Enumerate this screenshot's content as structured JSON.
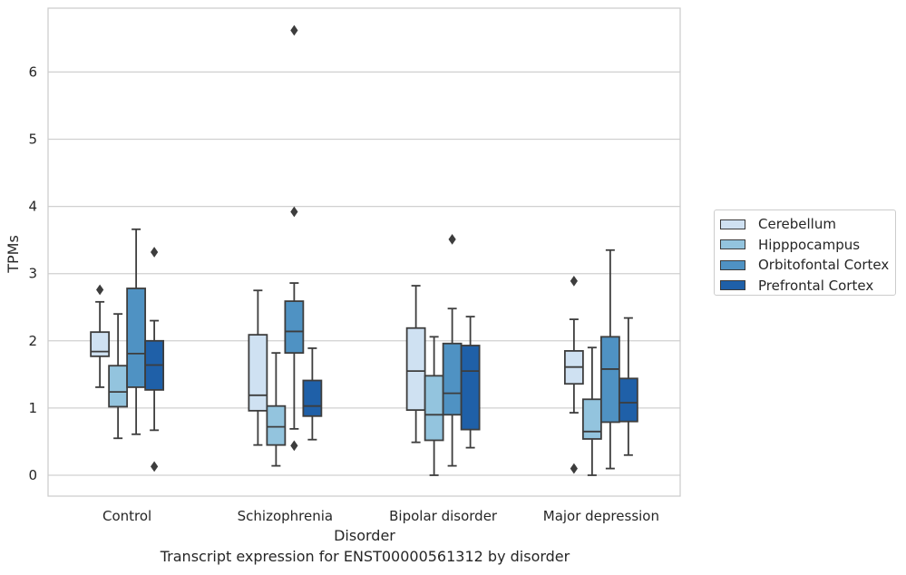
{
  "chart_data": {
    "type": "box",
    "title": "Transcript expression for ENST00000561312 by disorder",
    "xlabel": "Disorder",
    "ylabel": "TPMs",
    "ylim": [
      -0.32,
      6.95
    ],
    "yticks": [
      "0",
      "1",
      "2",
      "3",
      "4",
      "5",
      "6"
    ],
    "grid": true,
    "legend_position": "right",
    "categories": [
      "Control",
      "Schizophrenia",
      "Bipolar disorder",
      "Major depression"
    ],
    "series": [
      {
        "name": "Cerebellum",
        "color": "#cfe1f2",
        "boxes": [
          {
            "whislo": 1.31,
            "q1": 1.77,
            "med": 1.84,
            "q3": 2.13,
            "whishi": 2.58,
            "fliers": [
              2.76
            ]
          },
          {
            "whislo": 0.45,
            "q1": 0.96,
            "med": 1.19,
            "q3": 2.09,
            "whishi": 2.75,
            "fliers": []
          },
          {
            "whislo": 0.49,
            "q1": 0.97,
            "med": 1.55,
            "q3": 2.19,
            "whishi": 2.82,
            "fliers": []
          },
          {
            "whislo": 0.93,
            "q1": 1.36,
            "med": 1.61,
            "q3": 1.85,
            "whishi": 2.32,
            "fliers": [
              2.89,
              0.1
            ]
          }
        ]
      },
      {
        "name": "Hipppocampus",
        "color": "#93c4de",
        "boxes": [
          {
            "whislo": 0.55,
            "q1": 1.02,
            "med": 1.24,
            "q3": 1.63,
            "whishi": 2.4,
            "fliers": []
          },
          {
            "whislo": 0.14,
            "q1": 0.45,
            "med": 0.72,
            "q3": 1.03,
            "whishi": 1.82,
            "fliers": []
          },
          {
            "whislo": 0.0,
            "q1": 0.52,
            "med": 0.9,
            "q3": 1.48,
            "whishi": 2.06,
            "fliers": []
          },
          {
            "whislo": 0.0,
            "q1": 0.54,
            "med": 0.65,
            "q3": 1.13,
            "whishi": 1.9,
            "fliers": []
          }
        ]
      },
      {
        "name": "Orbitofontal Cortex",
        "color": "#4f92c3",
        "boxes": [
          {
            "whislo": 0.61,
            "q1": 1.31,
            "med": 1.81,
            "q3": 2.78,
            "whishi": 3.66,
            "fliers": []
          },
          {
            "whislo": 0.69,
            "q1": 1.82,
            "med": 2.14,
            "q3": 2.59,
            "whishi": 2.86,
            "fliers": [
              6.62,
              3.92,
              0.44
            ]
          },
          {
            "whislo": 0.14,
            "q1": 0.9,
            "med": 1.22,
            "q3": 1.96,
            "whishi": 2.48,
            "fliers": [
              3.51
            ]
          },
          {
            "whislo": 0.1,
            "q1": 0.79,
            "med": 1.58,
            "q3": 2.06,
            "whishi": 3.35,
            "fliers": []
          }
        ]
      },
      {
        "name": "Prefrontal Cortex",
        "color": "#1f60a8",
        "boxes": [
          {
            "whislo": 0.67,
            "q1": 1.27,
            "med": 1.64,
            "q3": 2.0,
            "whishi": 2.3,
            "fliers": [
              3.32,
              0.13
            ]
          },
          {
            "whislo": 0.53,
            "q1": 0.88,
            "med": 1.03,
            "q3": 1.41,
            "whishi": 1.89,
            "fliers": []
          },
          {
            "whislo": 0.41,
            "q1": 0.68,
            "med": 1.55,
            "q3": 1.93,
            "whishi": 2.36,
            "fliers": []
          },
          {
            "whislo": 0.3,
            "q1": 0.8,
            "med": 1.08,
            "q3": 1.44,
            "whishi": 2.34,
            "fliers": []
          }
        ]
      }
    ]
  }
}
